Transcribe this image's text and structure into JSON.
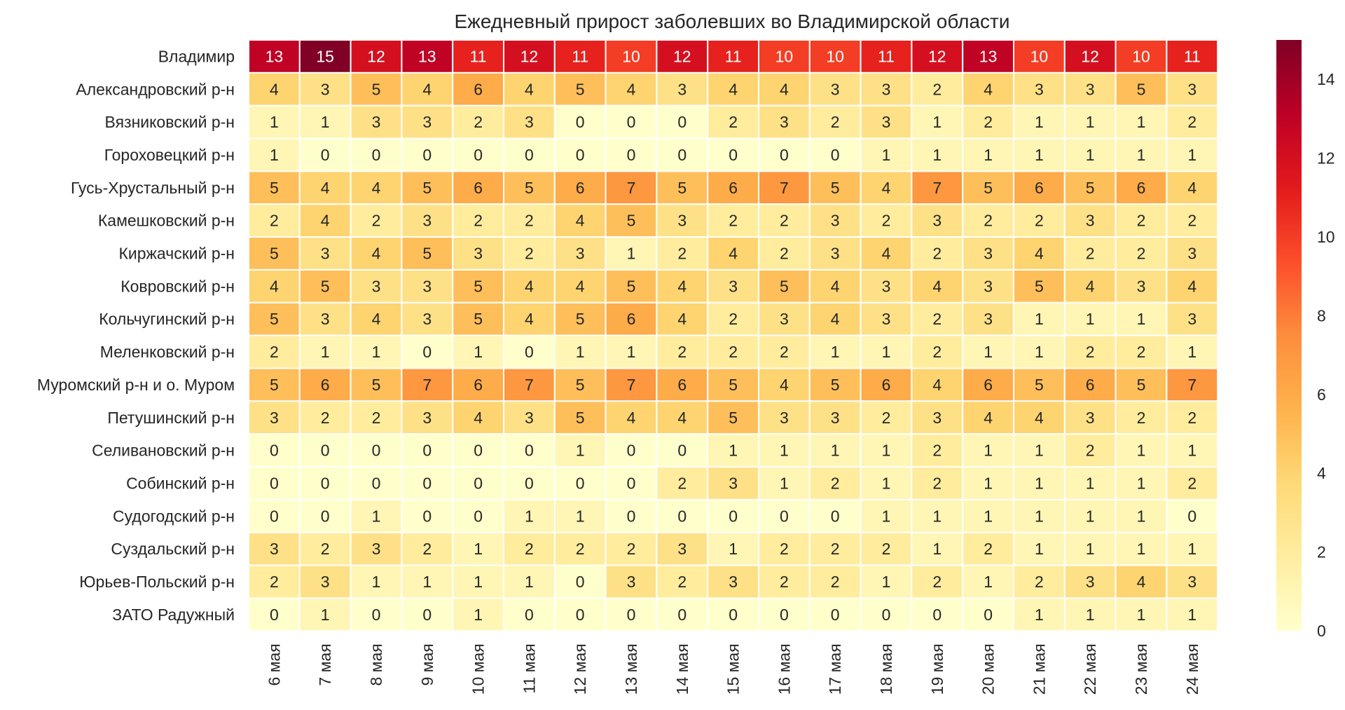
{
  "chart_data": {
    "type": "heatmap",
    "title": "Ежедневный прирост заболевших во Владимирской области",
    "xlabel": "",
    "ylabel": "",
    "columns": [
      "6 мая",
      "7 мая",
      "8 мая",
      "9 мая",
      "10 мая",
      "11 мая",
      "12 мая",
      "13 мая",
      "14 мая",
      "15 мая",
      "16 мая",
      "17 мая",
      "18 мая",
      "19 мая",
      "20 мая",
      "21 мая",
      "22 мая",
      "23 мая",
      "24 мая"
    ],
    "rows": [
      "Владимир",
      "Александровский р-н",
      "Вязниковский р-н",
      "Гороховецкий р-н",
      "Гусь-Хрустальный р-н",
      "Камешковский р-н",
      "Киржачский р-н",
      "Ковровский р-н",
      "Кольчугинский р-н",
      "Меленковский р-н",
      "Муромский р-н и о. Муром",
      "Петушинский р-н",
      "Селивановский р-н",
      "Собинский р-н",
      "Судогодский р-н",
      "Суздальский р-н",
      "Юрьев-Польский р-н",
      "ЗАТО Радужный"
    ],
    "values": [
      [
        13,
        15,
        12,
        13,
        11,
        12,
        11,
        10,
        12,
        11,
        10,
        10,
        11,
        12,
        13,
        10,
        12,
        10,
        11
      ],
      [
        4,
        3,
        5,
        4,
        6,
        4,
        5,
        4,
        3,
        4,
        4,
        3,
        3,
        2,
        4,
        3,
        3,
        5,
        3
      ],
      [
        1,
        1,
        3,
        3,
        2,
        3,
        0,
        0,
        0,
        2,
        3,
        2,
        3,
        1,
        2,
        1,
        1,
        1,
        2
      ],
      [
        1,
        0,
        0,
        0,
        0,
        0,
        0,
        0,
        0,
        0,
        0,
        0,
        1,
        1,
        1,
        1,
        1,
        1,
        1
      ],
      [
        5,
        4,
        4,
        5,
        6,
        5,
        6,
        7,
        5,
        6,
        7,
        5,
        4,
        7,
        5,
        6,
        5,
        6,
        4
      ],
      [
        2,
        4,
        2,
        3,
        2,
        2,
        4,
        5,
        3,
        2,
        2,
        3,
        2,
        3,
        2,
        2,
        3,
        2,
        2
      ],
      [
        5,
        3,
        4,
        5,
        3,
        2,
        3,
        1,
        2,
        4,
        2,
        3,
        4,
        2,
        3,
        4,
        2,
        2,
        3
      ],
      [
        4,
        5,
        3,
        3,
        5,
        4,
        4,
        5,
        4,
        3,
        5,
        4,
        3,
        4,
        3,
        5,
        4,
        3,
        4
      ],
      [
        5,
        3,
        4,
        3,
        5,
        4,
        5,
        6,
        4,
        2,
        3,
        4,
        3,
        2,
        3,
        1,
        1,
        1,
        3
      ],
      [
        2,
        1,
        1,
        0,
        1,
        0,
        1,
        1,
        2,
        2,
        2,
        1,
        1,
        2,
        1,
        1,
        2,
        2,
        1
      ],
      [
        5,
        6,
        5,
        7,
        6,
        7,
        5,
        7,
        6,
        5,
        4,
        5,
        6,
        4,
        6,
        5,
        6,
        5,
        7
      ],
      [
        3,
        2,
        2,
        3,
        4,
        3,
        5,
        4,
        4,
        5,
        3,
        3,
        2,
        3,
        4,
        4,
        3,
        2,
        2
      ],
      [
        0,
        0,
        0,
        0,
        0,
        0,
        1,
        0,
        0,
        1,
        1,
        1,
        1,
        2,
        1,
        1,
        2,
        1,
        1
      ],
      [
        0,
        0,
        0,
        0,
        0,
        0,
        0,
        0,
        2,
        3,
        1,
        2,
        1,
        2,
        1,
        1,
        1,
        1,
        2
      ],
      [
        0,
        0,
        1,
        0,
        0,
        1,
        1,
        0,
        0,
        0,
        0,
        0,
        1,
        1,
        1,
        1,
        1,
        1,
        0
      ],
      [
        3,
        2,
        3,
        2,
        1,
        2,
        2,
        2,
        3,
        1,
        2,
        2,
        2,
        1,
        2,
        1,
        1,
        1,
        1
      ],
      [
        2,
        3,
        1,
        1,
        1,
        1,
        0,
        3,
        2,
        3,
        2,
        2,
        1,
        2,
        1,
        2,
        3,
        4,
        3
      ],
      [
        0,
        1,
        0,
        0,
        1,
        0,
        0,
        0,
        0,
        0,
        0,
        0,
        0,
        0,
        0,
        1,
        1,
        1,
        1
      ]
    ],
    "colormap": "YlOrRd",
    "colorbar": {
      "min": 0,
      "max": 15,
      "ticks": [
        0,
        2,
        4,
        6,
        8,
        10,
        12,
        14
      ]
    },
    "grid": false,
    "legend": "colorbar right"
  }
}
